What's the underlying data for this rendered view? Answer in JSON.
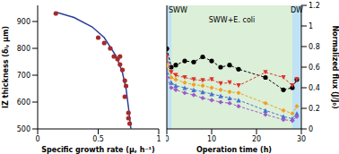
{
  "chart_data": [
    {
      "type": "scatter",
      "x_label": "Specific growth rate (μ, h⁻¹)",
      "y_label": "IZ thickness (δᵢ, μm)",
      "x": [
        0.15,
        0.5,
        0.55,
        0.6,
        0.63,
        0.66,
        0.68,
        0.68,
        0.7,
        0.72,
        0.73,
        0.72,
        0.75,
        0.75,
        0.76
      ],
      "values": [
        930,
        840,
        820,
        800,
        770,
        760,
        770,
        740,
        720,
        680,
        660,
        620,
        560,
        540,
        520
      ],
      "color": "#a52a2a",
      "marker": "circle",
      "xlim": [
        0,
        1
      ],
      "xticks": [
        0,
        0.5,
        1
      ],
      "ylim": [
        500,
        960
      ],
      "yticks": [
        500,
        600,
        700,
        800,
        900
      ],
      "fit": {
        "type": "line",
        "color": "#2b3f9e",
        "x": [
          0.15,
          0.3,
          0.45,
          0.55,
          0.65,
          0.7,
          0.73,
          0.75,
          0.77
        ],
        "values": [
          935,
          915,
          880,
          840,
          770,
          710,
          650,
          580,
          500
        ]
      }
    },
    {
      "type": "line",
      "x_label": "Operation time (h)",
      "y_label": "Normalized flux (J/J₀)",
      "x": [
        0,
        1,
        2,
        4,
        6,
        8,
        10,
        12,
        14,
        16,
        22,
        26,
        28,
        29
      ],
      "series": [
        {
          "color": "#000000",
          "marker": "circle",
          "line_style": "dashed",
          "values": [
            0.78,
            0.6,
            0.62,
            0.66,
            0.65,
            0.7,
            0.66,
            0.6,
            0.62,
            0.58,
            0.5,
            0.38,
            0.4,
            0.48
          ]
        },
        {
          "color": "#e0302a",
          "marker": "triangle-down",
          "line_style": "dashed",
          "values": [
            0.7,
            0.55,
            0.52,
            0.5,
            0.48,
            0.47,
            0.48,
            0.44,
            0.45,
            0.42,
            0.55,
            0.5,
            0.42,
            0.48
          ]
        },
        {
          "color": "#f0a020",
          "marker": "diamond",
          "line_style": "dashed",
          "values": [
            0.62,
            0.5,
            0.48,
            0.45,
            0.43,
            0.42,
            0.4,
            0.38,
            0.36,
            0.35,
            0.25,
            0.18,
            0.15,
            0.22
          ]
        },
        {
          "color": "#4a6fd0",
          "marker": "triangle",
          "line_style": "dashed",
          "values": [
            0.55,
            0.45,
            0.42,
            0.4,
            0.38,
            0.36,
            0.34,
            0.32,
            0.3,
            0.28,
            0.18,
            0.12,
            0.1,
            0.15
          ]
        },
        {
          "color": "#9a5cc8",
          "marker": "diamond",
          "line_style": "dashed",
          "values": [
            0.5,
            0.4,
            0.38,
            0.35,
            0.33,
            0.3,
            0.28,
            0.26,
            0.25,
            0.22,
            0.14,
            0.09,
            0.08,
            0.12
          ]
        }
      ],
      "xlim": [
        0,
        30
      ],
      "xticks": [
        0,
        10,
        20,
        30
      ],
      "ylim": [
        0,
        1.2
      ],
      "yticks": [
        0,
        0.2,
        0.4,
        0.6,
        0.8,
        1,
        1.2
      ],
      "regions": [
        {
          "label": "SWW",
          "x": [
            0,
            1
          ],
          "color": "#bfe3f5"
        },
        {
          "label": "SWW+E. coli",
          "x": [
            1,
            28
          ],
          "color": "#dcefd8"
        },
        {
          "label": "DW",
          "x": [
            28,
            30
          ],
          "color": "#bfe3f5"
        }
      ]
    }
  ]
}
